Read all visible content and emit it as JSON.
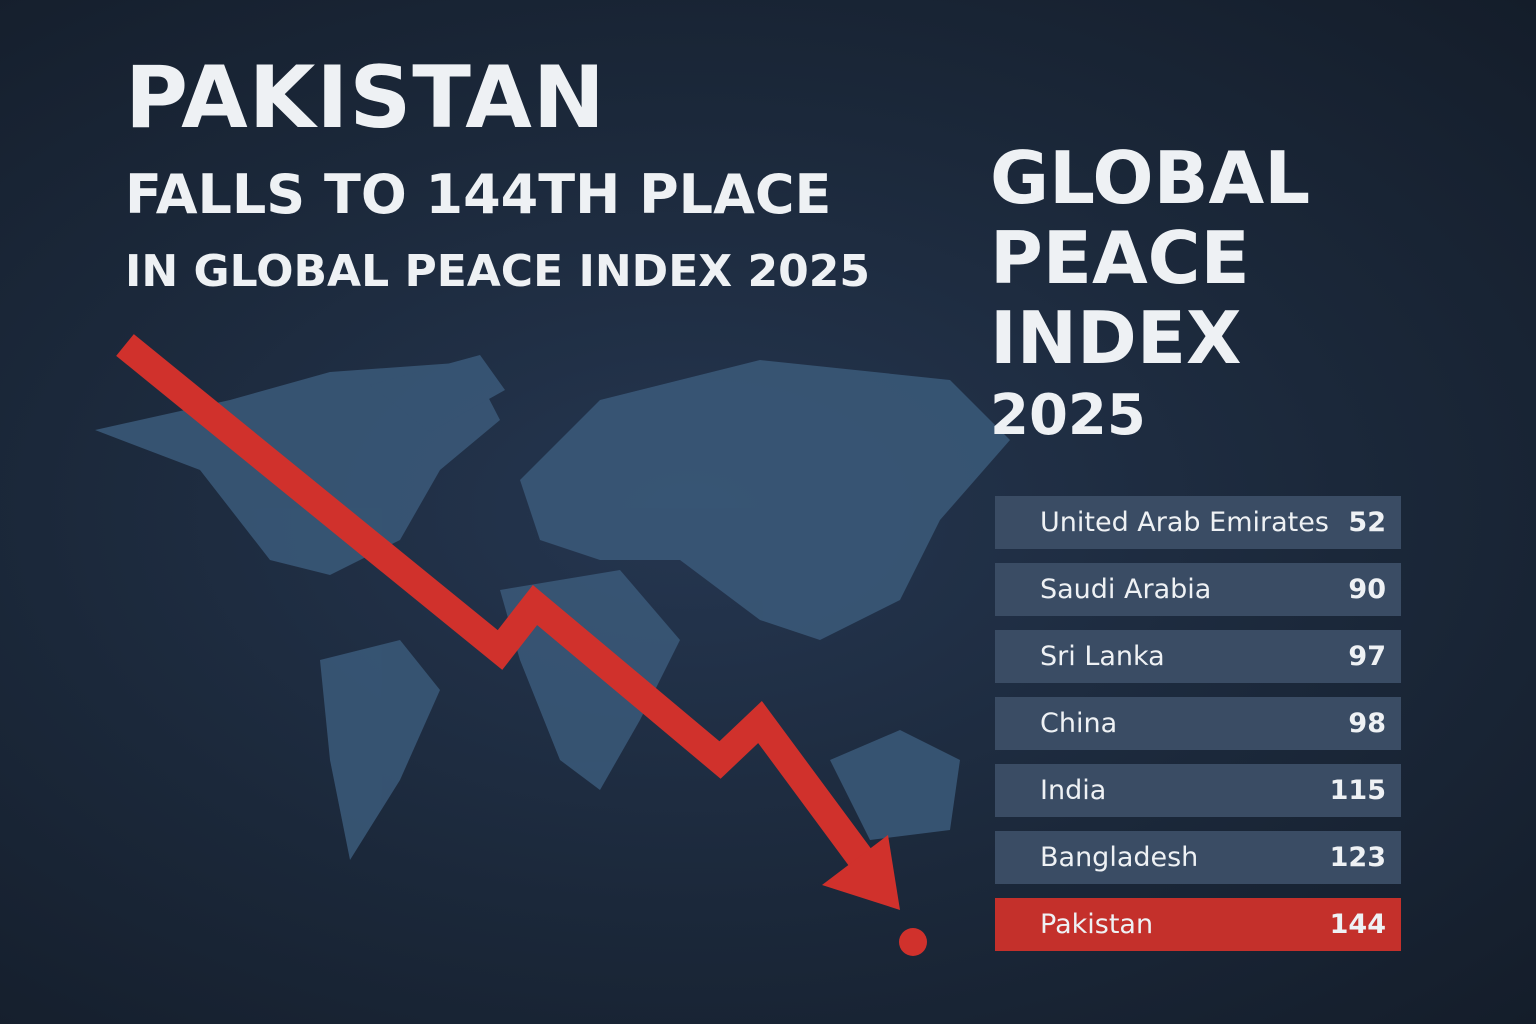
{
  "headline": {
    "line1": "PAKISTAN",
    "line2": "FALLS TO 144TH PLACE",
    "line3": "IN GLOBAL PEACE INDEX 2025"
  },
  "side_title": {
    "lines": [
      "GLOBAL",
      "PEACE",
      "INDEX",
      "2025"
    ]
  },
  "table": {
    "rows": [
      [
        "United Arab Emirates",
        52
      ],
      [
        "Saudi Arabia",
        90
      ],
      [
        "Sri Lanka",
        97
      ],
      [
        "China",
        98
      ],
      [
        "India",
        115
      ],
      [
        "Bangladesh",
        123
      ],
      [
        "Pakistan",
        144
      ]
    ]
  }
}
